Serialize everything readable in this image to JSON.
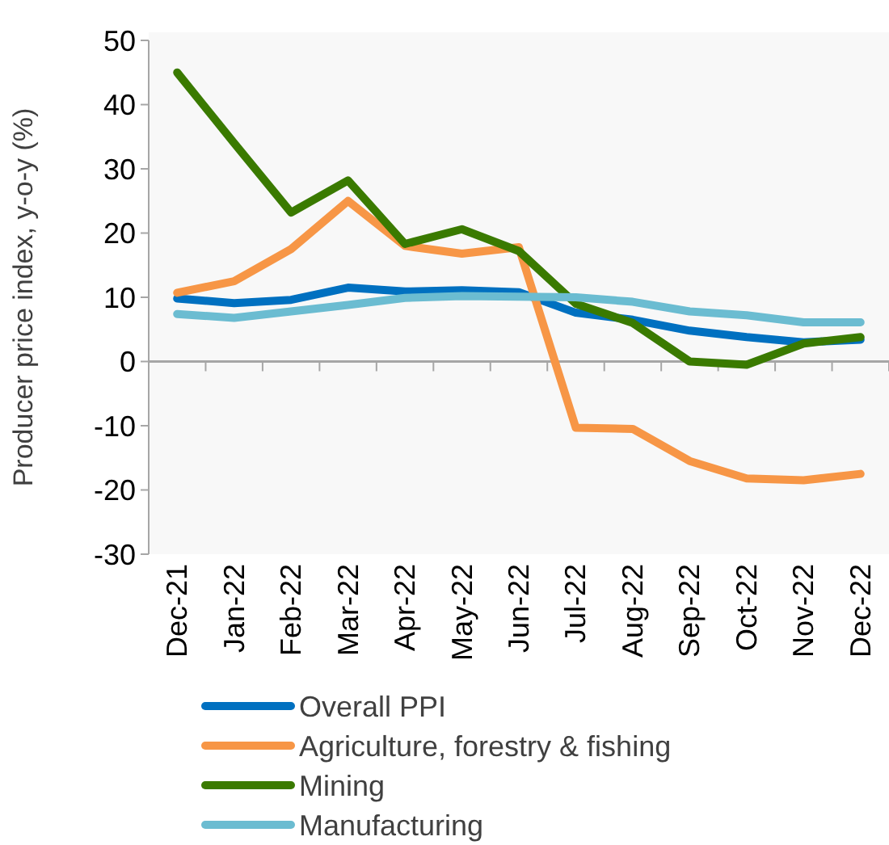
{
  "chart_data": {
    "type": "line",
    "ylabel": "Producer price index, y-o-y (%)",
    "categories": [
      "Dec-21",
      "Jan-22",
      "Feb-22",
      "Mar-22",
      "Apr-22",
      "May-22",
      "Jun-22",
      "Jul-22",
      "Aug-22",
      "Sep-22",
      "Oct-22",
      "Nov-22",
      "Dec-22"
    ],
    "series": [
      {
        "name": "Overall PPI",
        "color": "#0070c0",
        "values": [
          9.8,
          9.1,
          9.6,
          11.5,
          10.9,
          11.1,
          10.8,
          7.6,
          6.5,
          4.8,
          3.8,
          3.0,
          3.4
        ]
      },
      {
        "name": "Agriculture, forestry & fishing",
        "color": "#f79646",
        "values": [
          10.7,
          12.5,
          17.5,
          25,
          18,
          16.8,
          17.8,
          -10.3,
          -10.5,
          -15.5,
          -18.2,
          -18.5,
          -17.5
        ]
      },
      {
        "name": "Mining",
        "color": "#3a7a00",
        "values": [
          45,
          34,
          23.2,
          28.2,
          18.3,
          20.6,
          17.2,
          9,
          6,
          0,
          -0.5,
          2.8,
          3.8
        ]
      },
      {
        "name": "Manufacturing",
        "color": "#6bbcd1",
        "values": [
          7.4,
          6.8,
          7.8,
          8.8,
          9.9,
          10.2,
          10.1,
          10,
          9.3,
          7.8,
          7.2,
          6.1,
          6.1
        ]
      }
    ],
    "ylim": [
      -30,
      50
    ],
    "yticks": [
      -30,
      -20,
      -10,
      0,
      10,
      20,
      30,
      40,
      50
    ],
    "legend": "bottom",
    "marker": "none",
    "line_style": "solid"
  }
}
